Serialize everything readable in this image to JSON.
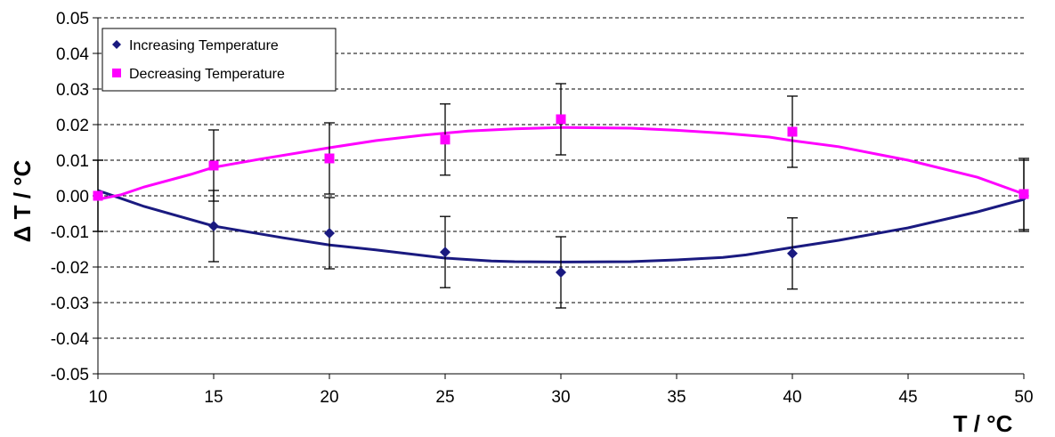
{
  "chart_data": {
    "type": "scatter",
    "xlabel": "T / °C",
    "ylabel": "Δ T / °C",
    "xlim": [
      10,
      50
    ],
    "ylim": [
      -0.05,
      0.05
    ],
    "x_ticks": [
      "10",
      "15",
      "20",
      "25",
      "30",
      "35",
      "40",
      "45",
      "50"
    ],
    "y_ticks": [
      "0.05",
      "0.04",
      "0.03",
      "0.02",
      "0.01",
      "0.00",
      "-0.01",
      "-0.02",
      "-0.03",
      "-0.04",
      "-0.05"
    ],
    "grid": "horizontal dashed",
    "legend_position": "top-left",
    "error_bar": 0.01,
    "series": [
      {
        "name": "Increasing Temperature",
        "marker": "diamond",
        "color": "#1a1a80",
        "points": [
          {
            "x": 10,
            "y": 0.0
          },
          {
            "x": 15,
            "y": -0.0085
          },
          {
            "x": 20,
            "y": -0.0105
          },
          {
            "x": 25,
            "y": -0.0158
          },
          {
            "x": 30,
            "y": -0.0215
          },
          {
            "x": 40,
            "y": -0.0162
          },
          {
            "x": 50,
            "y": 0.0
          }
        ],
        "fit": [
          [
            10,
            0.0015
          ],
          [
            12,
            -0.003
          ],
          [
            15,
            -0.0085
          ],
          [
            18,
            -0.0118
          ],
          [
            20,
            -0.0138
          ],
          [
            22,
            -0.0152
          ],
          [
            25,
            -0.0175
          ],
          [
            27,
            -0.0183
          ],
          [
            28,
            -0.0185
          ],
          [
            30,
            -0.0186
          ],
          [
            33,
            -0.0185
          ],
          [
            35,
            -0.018
          ],
          [
            37,
            -0.0173
          ],
          [
            38,
            -0.0166
          ],
          [
            40,
            -0.0145
          ],
          [
            42,
            -0.0125
          ],
          [
            45,
            -0.009
          ],
          [
            48,
            -0.0045
          ],
          [
            50,
            -0.001
          ]
        ]
      },
      {
        "name": "Decreasing Temperature",
        "marker": "square",
        "color": "#ff00ff",
        "points": [
          {
            "x": 10,
            "y": 0.0
          },
          {
            "x": 15,
            "y": 0.0085
          },
          {
            "x": 20,
            "y": 0.0105
          },
          {
            "x": 25,
            "y": 0.0158
          },
          {
            "x": 30,
            "y": 0.0215
          },
          {
            "x": 40,
            "y": 0.018
          },
          {
            "x": 50,
            "y": 0.0005
          }
        ],
        "fit": [
          [
            10,
            -0.001
          ],
          [
            11,
            0.0003
          ],
          [
            12,
            0.0025
          ],
          [
            14,
            0.006
          ],
          [
            15,
            0.008
          ],
          [
            17,
            0.0103
          ],
          [
            20,
            0.0135
          ],
          [
            22,
            0.0155
          ],
          [
            24,
            0.017
          ],
          [
            26,
            0.0182
          ],
          [
            28,
            0.0188
          ],
          [
            30,
            0.0192
          ],
          [
            33,
            0.019
          ],
          [
            35,
            0.0184
          ],
          [
            37,
            0.0176
          ],
          [
            39,
            0.0165
          ],
          [
            40,
            0.0155
          ],
          [
            42,
            0.0138
          ],
          [
            45,
            0.01
          ],
          [
            48,
            0.0052
          ],
          [
            50,
            0.0005
          ]
        ]
      }
    ]
  }
}
